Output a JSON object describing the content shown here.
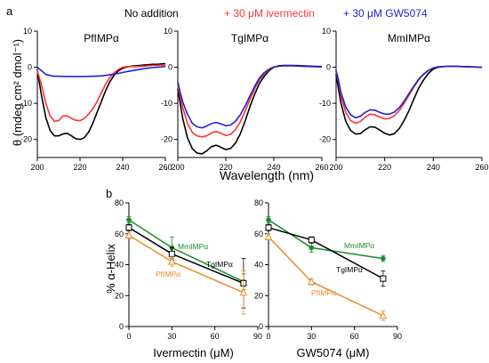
{
  "figure": {
    "panel_a_label": "a",
    "panel_b_label": "b",
    "legend": [
      {
        "label": "No addition",
        "color": "#000000"
      },
      {
        "label": "+ 30 μM  ivermectin",
        "color": "#ff3333"
      },
      {
        "label": "+ 30 μM  GW5074",
        "color": "#2222cc"
      }
    ],
    "panel_a_ylabel": "θ (mdeg cm² dmol⁻¹)",
    "panel_a_xlabel": "Wavelength (nm)",
    "panel_b_ylabel": "% α-Helix"
  },
  "chart_data": [
    {
      "type": "line",
      "title": "PfIMPα",
      "xlim": [
        200,
        260
      ],
      "ylim": [
        -25,
        10
      ],
      "xticks": [
        200,
        220,
        240,
        260
      ],
      "yticks": [
        10,
        0,
        -10,
        -20
      ],
      "series": [
        {
          "name": "No addition",
          "color": "#000000",
          "x": [
            200,
            202,
            204,
            206,
            208,
            210,
            212,
            214,
            216,
            218,
            220,
            222,
            224,
            226,
            228,
            230,
            232,
            234,
            236,
            238,
            240,
            242,
            244,
            246,
            248,
            250,
            252,
            254,
            256,
            258,
            260
          ],
          "y": [
            -1,
            -8,
            -14,
            -17.5,
            -19,
            -19,
            -18.5,
            -18.3,
            -19,
            -19.8,
            -20,
            -19.5,
            -18,
            -15.5,
            -12.5,
            -9.5,
            -6.5,
            -4,
            -2.2,
            -1,
            -0.3,
            0.1,
            0.3,
            0.4,
            0.5,
            0.6,
            0.7,
            0.8,
            0.8,
            0.9,
            1
          ]
        },
        {
          "name": "+ 30 μM  ivermectin",
          "color": "#ff3333",
          "x": [
            200,
            202,
            204,
            206,
            208,
            210,
            212,
            214,
            216,
            218,
            220,
            222,
            224,
            226,
            228,
            230,
            232,
            234,
            236,
            238,
            240,
            242,
            244,
            246,
            248,
            250,
            252,
            254,
            256,
            258,
            260
          ],
          "y": [
            -1,
            -5,
            -10,
            -13.5,
            -15,
            -14.8,
            -13.5,
            -13.5,
            -14.2,
            -14.7,
            -14.8,
            -14.2,
            -13,
            -11.5,
            -9.5,
            -7,
            -4.7,
            -2.8,
            -1.5,
            -0.6,
            0,
            0.2,
            0.2,
            0.2,
            0.3,
            0.3,
            0.4,
            0.5,
            0.5,
            0.6,
            0.6
          ]
        },
        {
          "name": "+ 30 μM  GW5074",
          "color": "#2222cc",
          "x": [
            200,
            202,
            204,
            206,
            208,
            210,
            214,
            218,
            222,
            226,
            230,
            234,
            238,
            242,
            246,
            250,
            254,
            258,
            260
          ],
          "y": [
            0,
            -1,
            -2,
            -2.3,
            -2.5,
            -2.5,
            -2.6,
            -2.6,
            -2.6,
            -2.5,
            -2.4,
            -2.1,
            -1.7,
            -1.2,
            -0.8,
            -0.4,
            -0.1,
            0.1,
            0.2
          ]
        }
      ]
    },
    {
      "type": "line",
      "title": "TgIMPα",
      "xlim": [
        200,
        260
      ],
      "ylim": [
        -25,
        10
      ],
      "xticks": [
        200,
        220,
        240,
        260
      ],
      "yticks": [
        10,
        0,
        -10,
        -20
      ],
      "series": [
        {
          "name": "No addition",
          "color": "#000000",
          "x": [
            200,
            201,
            202,
            204,
            206,
            208,
            210,
            212,
            214,
            216,
            218,
            220,
            222,
            224,
            226,
            228,
            230,
            232,
            234,
            236,
            238,
            240,
            242,
            244,
            248,
            252,
            256,
            260
          ],
          "y": [
            -6,
            -10,
            -14,
            -19.5,
            -22.5,
            -23.8,
            -24,
            -23.2,
            -22,
            -21.6,
            -22.2,
            -22.8,
            -22.5,
            -21,
            -18.5,
            -15,
            -11,
            -7.5,
            -4.5,
            -2.5,
            -1,
            0,
            0.4,
            0.5,
            0.5,
            0.4,
            0.3,
            0.2
          ]
        },
        {
          "name": "+ 30 μM  ivermectin",
          "color": "#ff3333",
          "x": [
            200,
            201,
            202,
            204,
            206,
            208,
            210,
            212,
            214,
            216,
            218,
            220,
            222,
            224,
            226,
            228,
            230,
            232,
            234,
            236,
            238,
            240,
            242,
            244,
            248,
            252,
            256,
            260
          ],
          "y": [
            -5,
            -8,
            -11,
            -15.5,
            -18,
            -19,
            -19.3,
            -19,
            -18.2,
            -17.8,
            -18.3,
            -18.9,
            -18.6,
            -17.3,
            -15.2,
            -12.2,
            -9,
            -6,
            -3.5,
            -1.8,
            -0.7,
            0,
            0.3,
            0.4,
            0.4,
            0.3,
            0.2,
            0.1
          ]
        },
        {
          "name": "+ 30 μM  GW5074",
          "color": "#2222cc",
          "x": [
            200,
            201,
            202,
            204,
            206,
            208,
            210,
            212,
            214,
            216,
            218,
            220,
            222,
            224,
            226,
            228,
            230,
            232,
            234,
            236,
            238,
            240,
            242,
            244,
            248,
            252,
            256,
            260
          ],
          "y": [
            -4,
            -7,
            -9.5,
            -13,
            -15.5,
            -16.5,
            -16.8,
            -16.3,
            -15.6,
            -15.3,
            -15.7,
            -16.2,
            -16,
            -15,
            -13.2,
            -10.8,
            -8,
            -5.3,
            -3,
            -1.5,
            -0.5,
            0.1,
            0.3,
            0.4,
            0.4,
            0.3,
            0.2,
            0.1
          ]
        }
      ]
    },
    {
      "type": "line",
      "title": "MmIMPα",
      "xlim": [
        200,
        260
      ],
      "ylim": [
        -25,
        10
      ],
      "xticks": [
        200,
        220,
        240,
        260
      ],
      "yticks": [
        10,
        0,
        -10,
        -20
      ],
      "series": [
        {
          "name": "No addition",
          "color": "#000000",
          "x": [
            200,
            201,
            202,
            204,
            206,
            208,
            210,
            212,
            214,
            216,
            218,
            220,
            222,
            224,
            226,
            228,
            230,
            232,
            234,
            236,
            238,
            240,
            242,
            244,
            248,
            252,
            256,
            260
          ],
          "y": [
            -2,
            -6,
            -10,
            -15,
            -17.5,
            -18.5,
            -18.4,
            -17.3,
            -16.5,
            -16.6,
            -17.4,
            -18.3,
            -18.8,
            -18.4,
            -17,
            -14.8,
            -12,
            -8.8,
            -5.8,
            -3.5,
            -1.7,
            -0.5,
            0,
            0.2,
            0.3,
            0.2,
            0.1,
            0
          ]
        },
        {
          "name": "+ 30 μM  ivermectin",
          "color": "#ff3333",
          "x": [
            200,
            201,
            202,
            204,
            206,
            208,
            210,
            212,
            214,
            216,
            218,
            220,
            222,
            224,
            226,
            228,
            230,
            232,
            234,
            236,
            238,
            240,
            242,
            244,
            248,
            252,
            256,
            260
          ],
          "y": [
            -1,
            -4,
            -8,
            -12.5,
            -14.8,
            -15.5,
            -15,
            -13.8,
            -13,
            -13.2,
            -13.8,
            -14.3,
            -14.2,
            -13.4,
            -12,
            -10,
            -7.8,
            -5.5,
            -3.5,
            -2,
            -0.9,
            -0.2,
            0.1,
            0.2,
            0.3,
            0.2,
            0.1,
            0
          ]
        },
        {
          "name": "+ 30 μM  GW5074",
          "color": "#2222cc",
          "x": [
            200,
            201,
            202,
            204,
            206,
            208,
            210,
            212,
            214,
            216,
            218,
            220,
            222,
            224,
            226,
            228,
            230,
            232,
            234,
            236,
            238,
            240,
            242,
            244,
            248,
            252,
            256,
            260
          ],
          "y": [
            -1,
            -3.5,
            -7,
            -11,
            -13.2,
            -14,
            -13.6,
            -12.5,
            -11.8,
            -11.9,
            -12.5,
            -13,
            -13,
            -12.4,
            -11.2,
            -9.4,
            -7.3,
            -5.2,
            -3.3,
            -1.9,
            -0.9,
            -0.2,
            0.1,
            0.2,
            0.3,
            0.2,
            0.1,
            0
          ]
        }
      ]
    },
    {
      "type": "scatter",
      "xlabel": "Ivermectin (μM)",
      "xlim": [
        0,
        90
      ],
      "ylim": [
        0,
        80
      ],
      "xticks": [
        0,
        30,
        60,
        90
      ],
      "yticks": [
        0,
        20,
        40,
        60,
        80
      ],
      "series": [
        {
          "name": "MmIMPα",
          "color": "#1a8a2a",
          "marker": "circle",
          "x": [
            0,
            30,
            80
          ],
          "y": [
            69,
            51,
            29
          ],
          "err": [
            2,
            7,
            5
          ]
        },
        {
          "name": "TgIMPα",
          "color": "#000000",
          "marker": "square",
          "x": [
            0,
            30,
            80
          ],
          "y": [
            64,
            47,
            28
          ],
          "err": [
            2,
            4,
            16
          ]
        },
        {
          "name": "PfIMPα",
          "color": "#f08a24",
          "marker": "triangle",
          "x": [
            0,
            30,
            80
          ],
          "y": [
            59,
            42,
            22
          ],
          "err": [
            2,
            3,
            14
          ]
        }
      ]
    },
    {
      "type": "scatter",
      "xlabel": "GW5074 (μM)",
      "xlim": [
        0,
        90
      ],
      "ylim": [
        0,
        80
      ],
      "xticks": [
        0,
        30,
        60,
        90
      ],
      "yticks": [
        0,
        20,
        40,
        60,
        80
      ],
      "series": [
        {
          "name": "MmIMPα",
          "color": "#1a8a2a",
          "marker": "circle",
          "x": [
            0,
            30,
            80
          ],
          "y": [
            69,
            51,
            44
          ],
          "err": [
            2,
            3,
            2
          ]
        },
        {
          "name": "TgIMPα",
          "color": "#000000",
          "marker": "square",
          "x": [
            0,
            30,
            80
          ],
          "y": [
            64,
            56,
            31
          ],
          "err": [
            2,
            2,
            5
          ]
        },
        {
          "name": "PfIMPα",
          "color": "#f08a24",
          "marker": "triangle",
          "x": [
            0,
            30,
            80
          ],
          "y": [
            58,
            29,
            7
          ],
          "err": [
            2,
            2,
            3
          ]
        }
      ]
    }
  ]
}
